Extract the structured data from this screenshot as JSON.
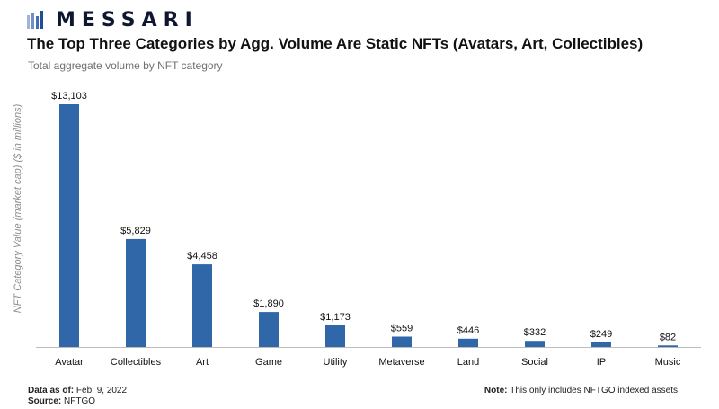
{
  "brand": {
    "name": "MESSARI",
    "color": "#0f1730"
  },
  "header": {
    "title": "The Top Three Categories by Agg. Volume Are Static NFTs (Avatars, Art, Collectibles)",
    "subtitle": "Total aggregate volume by NFT category"
  },
  "footer": {
    "date_label": "Data as of",
    "date_value": "Feb. 9, 2022",
    "source_label": "Source",
    "source_value": "NFTGO",
    "note_label": "Note",
    "note_value": "This only includes NFTGO indexed assets"
  },
  "chart_data": {
    "type": "bar",
    "title": "The Top Three Categories by Agg. Volume Are Static NFTs (Avatars, Art, Collectibles)",
    "subtitle": "Total aggregate volume by NFT category",
    "xlabel": "",
    "ylabel": "NFT Category Value (market cap) ($ in millions)",
    "categories": [
      "Avatar",
      "Collectibles",
      "Art",
      "Game",
      "Utility",
      "Metaverse",
      "Land",
      "Social",
      "IP",
      "Music"
    ],
    "values": [
      13103,
      5829,
      4458,
      1890,
      1173,
      559,
      446,
      332,
      249,
      82
    ],
    "labels": [
      "$13,103",
      "$5,829",
      "$4,458",
      "$1,890",
      "$1,173",
      "$559",
      "$446",
      "$332",
      "$249",
      "$82"
    ],
    "ylim": [
      0,
      13103
    ],
    "grid": false,
    "legend": "none",
    "bar_color": "#2f67a8",
    "axis_color": "#bcbcbc"
  }
}
